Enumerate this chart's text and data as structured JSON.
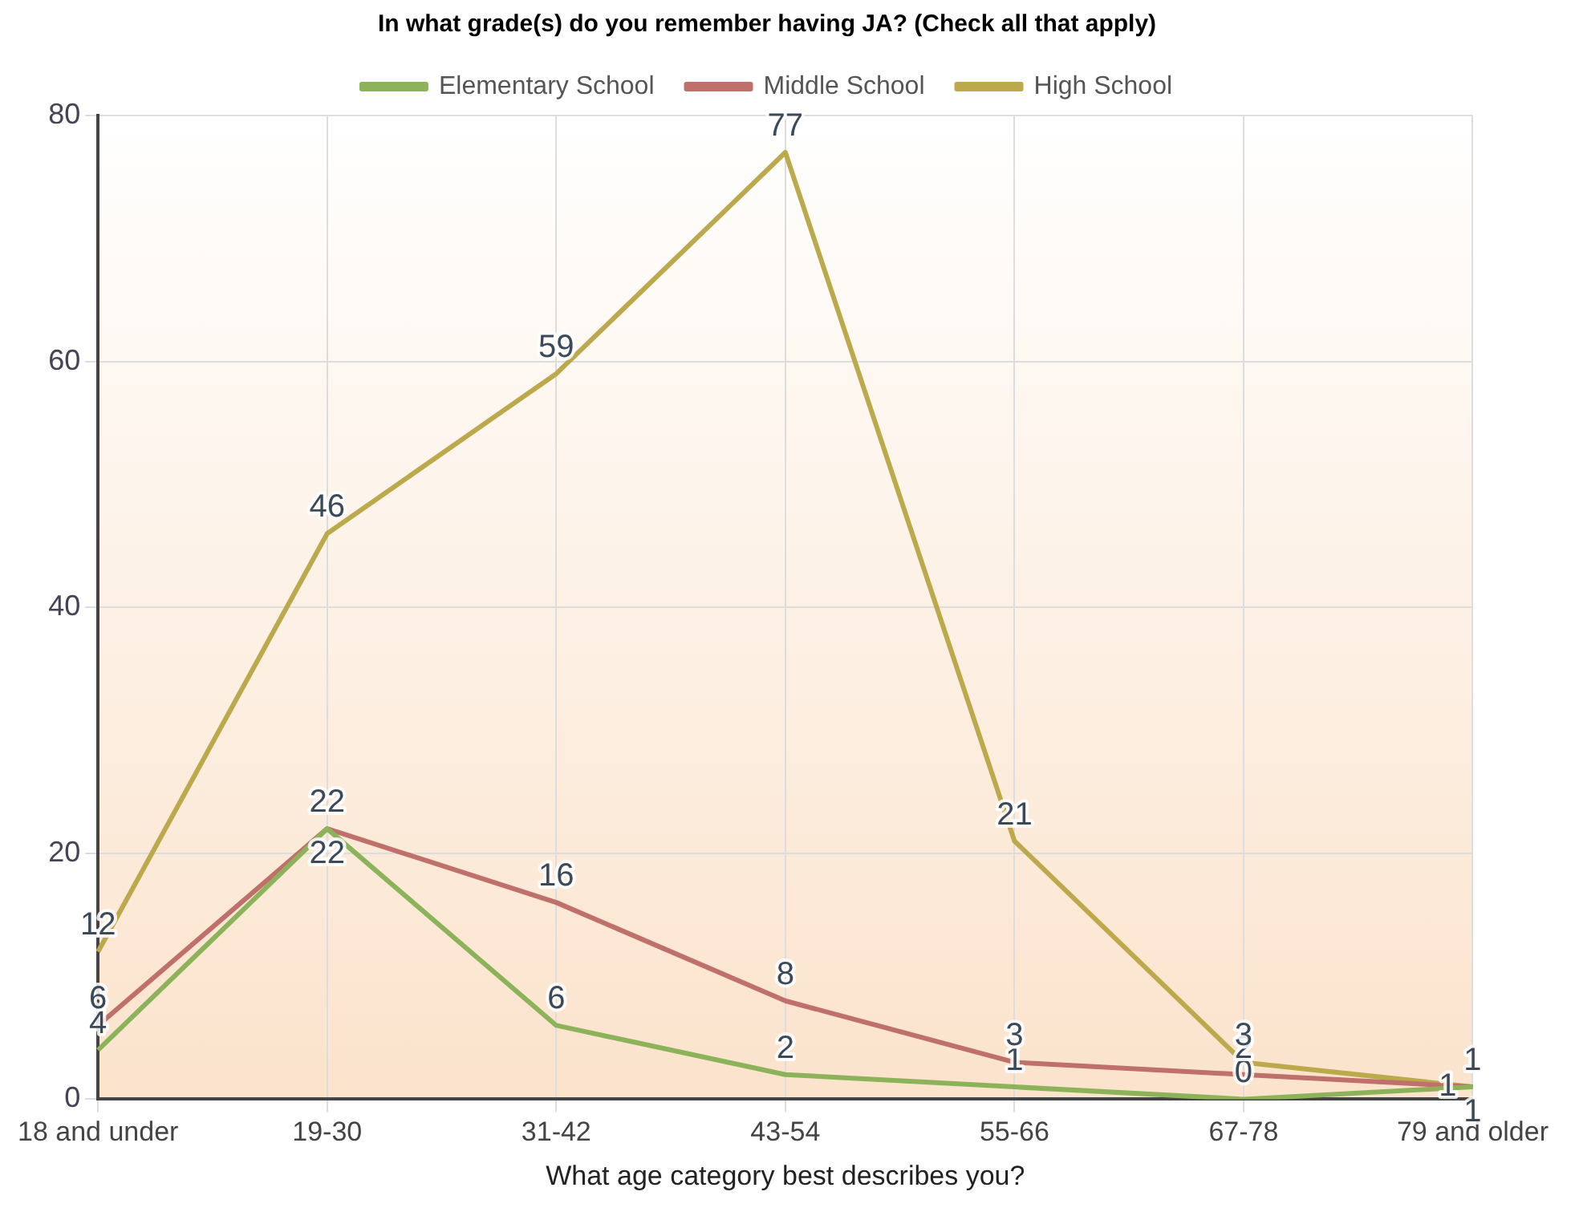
{
  "chart_data": {
    "type": "line",
    "legend_title": "In what grade(s) do you remember having JA? (Check all that apply)",
    "xlabel": "What age category best describes you?",
    "categories": [
      "18 and under",
      "19-30",
      "31-42",
      "43-54",
      "55-66",
      "67-78",
      "79 and older"
    ],
    "series": [
      {
        "name": "Elementary School",
        "color": "#8db35a",
        "values": [
          4,
          22,
          6,
          2,
          1,
          0,
          1
        ]
      },
      {
        "name": "Middle School",
        "color": "#c0706a",
        "values": [
          6,
          22,
          16,
          8,
          3,
          2,
          1
        ]
      },
      {
        "name": "High School",
        "color": "#bba94c",
        "values": [
          12,
          46,
          59,
          77,
          21,
          3,
          1
        ]
      }
    ],
    "ylim": [
      0,
      80
    ],
    "yticks": [
      0,
      20,
      40,
      60,
      80
    ],
    "grid": true,
    "legend": "top",
    "marker": "none",
    "line_style": "solid",
    "data_labels": true
  }
}
